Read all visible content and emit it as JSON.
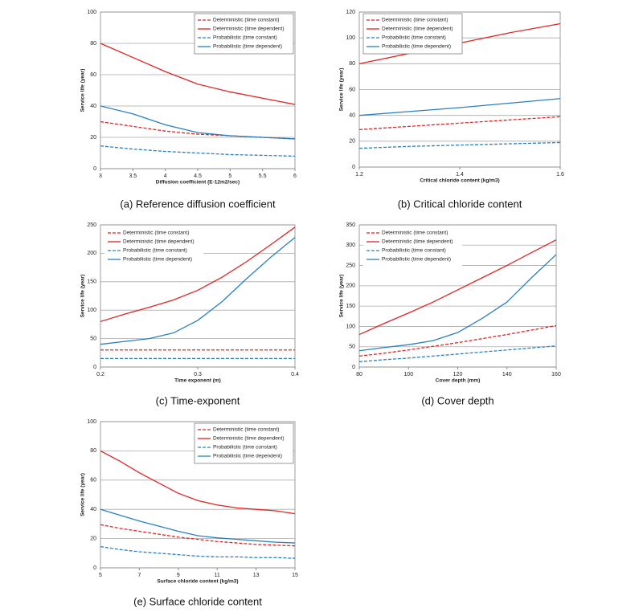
{
  "chart_data": [
    {
      "type": "line",
      "caption": "(a) Reference diffusion coefficient",
      "x_label": "Diffusion coefficient (E-12m2/sec)",
      "y_label": "Service life (year)",
      "x": [
        3,
        3.5,
        4,
        4.5,
        5,
        5.5,
        6
      ],
      "xlim": [
        3,
        6
      ],
      "xticks": [
        3,
        3.5,
        4,
        4.5,
        5,
        5.5,
        6
      ],
      "ylim": [
        0,
        100
      ],
      "yticks": [
        0,
        20,
        40,
        60,
        80,
        100
      ],
      "grid": true,
      "legend": "upper right",
      "legend_frame": true,
      "series": [
        {
          "name": "Deterministic (time constant)",
          "color": "#e02424",
          "style": "dashed",
          "values": [
            30,
            27,
            24,
            22,
            21,
            20,
            19
          ]
        },
        {
          "name": "Deterministic (time dependent)",
          "color": "#e02424",
          "style": "solid",
          "values": [
            80,
            71,
            62,
            54,
            49,
            45,
            41
          ]
        },
        {
          "name": "Probabilistic (time constant)",
          "color": "#2a7fc0",
          "style": "dashed",
          "values": [
            14.5,
            12.5,
            11,
            10,
            9,
            8.5,
            8
          ]
        },
        {
          "name": "Probabilistic (time dependent)",
          "color": "#2a7fc0",
          "style": "solid",
          "values": [
            40,
            35,
            28,
            23,
            21,
            20,
            19
          ]
        }
      ]
    },
    {
      "type": "line",
      "caption": "(b) Critical chloride content",
      "x_label": "Critical chloride content (kg/m3)",
      "y_label": "Service life (year)",
      "x": [
        1.2,
        1.3,
        1.4,
        1.5,
        1.6
      ],
      "xlim": [
        1.2,
        1.6
      ],
      "xticks": [
        1.2,
        1.4,
        1.6
      ],
      "ylim": [
        0,
        120
      ],
      "yticks": [
        0,
        20,
        40,
        60,
        80,
        100,
        120
      ],
      "grid": true,
      "legend": "upper left",
      "legend_frame": true,
      "series": [
        {
          "name": "Deterministic (time constant)",
          "color": "#e02424",
          "style": "dashed",
          "values": [
            29,
            31.5,
            34,
            36.5,
            39
          ]
        },
        {
          "name": "Deterministic (time dependent)",
          "color": "#e02424",
          "style": "solid",
          "values": [
            80,
            88,
            96,
            104,
            111
          ]
        },
        {
          "name": "Probabilistic (time constant)",
          "color": "#2a7fc0",
          "style": "dashed",
          "values": [
            14.5,
            16,
            17,
            18,
            19
          ]
        },
        {
          "name": "Probabilistic (time dependent)",
          "color": "#2a7fc0",
          "style": "solid",
          "values": [
            40,
            43,
            46,
            49.5,
            53
          ]
        }
      ]
    },
    {
      "type": "line",
      "caption": "(c) Time-exponent",
      "x_label": "Time exponent (m)",
      "y_label": "Service life (year)",
      "x": [
        0.2,
        0.225,
        0.25,
        0.275,
        0.3,
        0.325,
        0.35,
        0.375,
        0.4
      ],
      "xlim": [
        0.2,
        0.4
      ],
      "xticks": [
        0.2,
        0.3,
        0.4
      ],
      "ylim": [
        0,
        250
      ],
      "yticks": [
        0,
        50,
        100,
        150,
        200,
        250
      ],
      "grid": true,
      "legend": "upper left",
      "legend_frame": false,
      "series": [
        {
          "name": "Deterministic (time constant)",
          "color": "#e02424",
          "style": "dashed",
          "values": [
            30,
            30,
            30,
            30,
            30,
            30,
            30,
            30,
            30
          ]
        },
        {
          "name": "Deterministic (time dependent)",
          "color": "#e02424",
          "style": "solid",
          "values": [
            80,
            93,
            105,
            118,
            135,
            158,
            185,
            215,
            246
          ]
        },
        {
          "name": "Probabilistic (time constant)",
          "color": "#2a7fc0",
          "style": "dashed",
          "values": [
            15,
            15,
            15,
            15,
            15,
            15,
            15,
            15,
            15
          ]
        },
        {
          "name": "Probabilistic (time dependent)",
          "color": "#2a7fc0",
          "style": "solid",
          "values": [
            40,
            45,
            50,
            60,
            82,
            115,
            155,
            193,
            228
          ]
        }
      ]
    },
    {
      "type": "line",
      "caption": "(d) Cover depth",
      "x_label": "Cover depth (mm)",
      "y_label": "Service life (year)",
      "x": [
        80,
        90,
        100,
        110,
        120,
        130,
        140,
        150,
        160
      ],
      "xlim": [
        80,
        160
      ],
      "xticks": [
        80,
        100,
        120,
        140,
        160
      ],
      "ylim": [
        0,
        350
      ],
      "yticks": [
        0,
        50,
        100,
        150,
        200,
        250,
        300,
        350
      ],
      "grid": true,
      "legend": "upper left",
      "legend_frame": false,
      "series": [
        {
          "name": "Deterministic (time constant)",
          "color": "#e02424",
          "style": "dashed",
          "values": [
            27,
            34,
            42,
            51,
            60,
            70,
            80,
            91,
            102
          ]
        },
        {
          "name": "Deterministic (time dependent)",
          "color": "#e02424",
          "style": "solid",
          "values": [
            80,
            107,
            133,
            160,
            190,
            220,
            250,
            282,
            313
          ]
        },
        {
          "name": "Probabilistic (time constant)",
          "color": "#2a7fc0",
          "style": "dashed",
          "values": [
            13,
            18,
            22,
            27,
            32,
            37,
            42,
            47,
            52
          ]
        },
        {
          "name": "Probabilistic (time dependent)",
          "color": "#2a7fc0",
          "style": "solid",
          "values": [
            40,
            48,
            55,
            65,
            85,
            120,
            160,
            220,
            277
          ]
        }
      ]
    },
    {
      "type": "line",
      "caption": "(e) Surface chloride content",
      "x_label": "Surface chloride content (kg/m3)",
      "y_label": "Service life (year)",
      "x": [
        5,
        6,
        7,
        8,
        9,
        10,
        11,
        12,
        13,
        14,
        15
      ],
      "xlim": [
        5,
        15
      ],
      "xticks": [
        5,
        7,
        9,
        11,
        13,
        15
      ],
      "ylim": [
        0,
        100
      ],
      "yticks": [
        0,
        20,
        40,
        60,
        80,
        100
      ],
      "grid": true,
      "legend": "upper right",
      "legend_frame": true,
      "series": [
        {
          "name": "Deterministic (time constant)",
          "color": "#e02424",
          "style": "dashed",
          "values": [
            29.5,
            27,
            25,
            23,
            21,
            19.5,
            18,
            17,
            16,
            15.5,
            15
          ]
        },
        {
          "name": "Deterministic (time dependent)",
          "color": "#e02424",
          "style": "solid",
          "values": [
            80,
            73,
            65,
            58,
            51,
            46,
            43,
            41,
            40,
            39,
            37
          ]
        },
        {
          "name": "Probabilistic (time constant)",
          "color": "#2a7fc0",
          "style": "dashed",
          "values": [
            14.5,
            12.5,
            11,
            10,
            9,
            8,
            7.5,
            7.5,
            7,
            7,
            6.5
          ]
        },
        {
          "name": "Probabilistic (time dependent)",
          "color": "#2a7fc0",
          "style": "solid",
          "values": [
            40,
            36,
            32,
            28.5,
            25,
            22,
            20.5,
            19.5,
            18.5,
            17.5,
            17
          ]
        }
      ]
    }
  ]
}
